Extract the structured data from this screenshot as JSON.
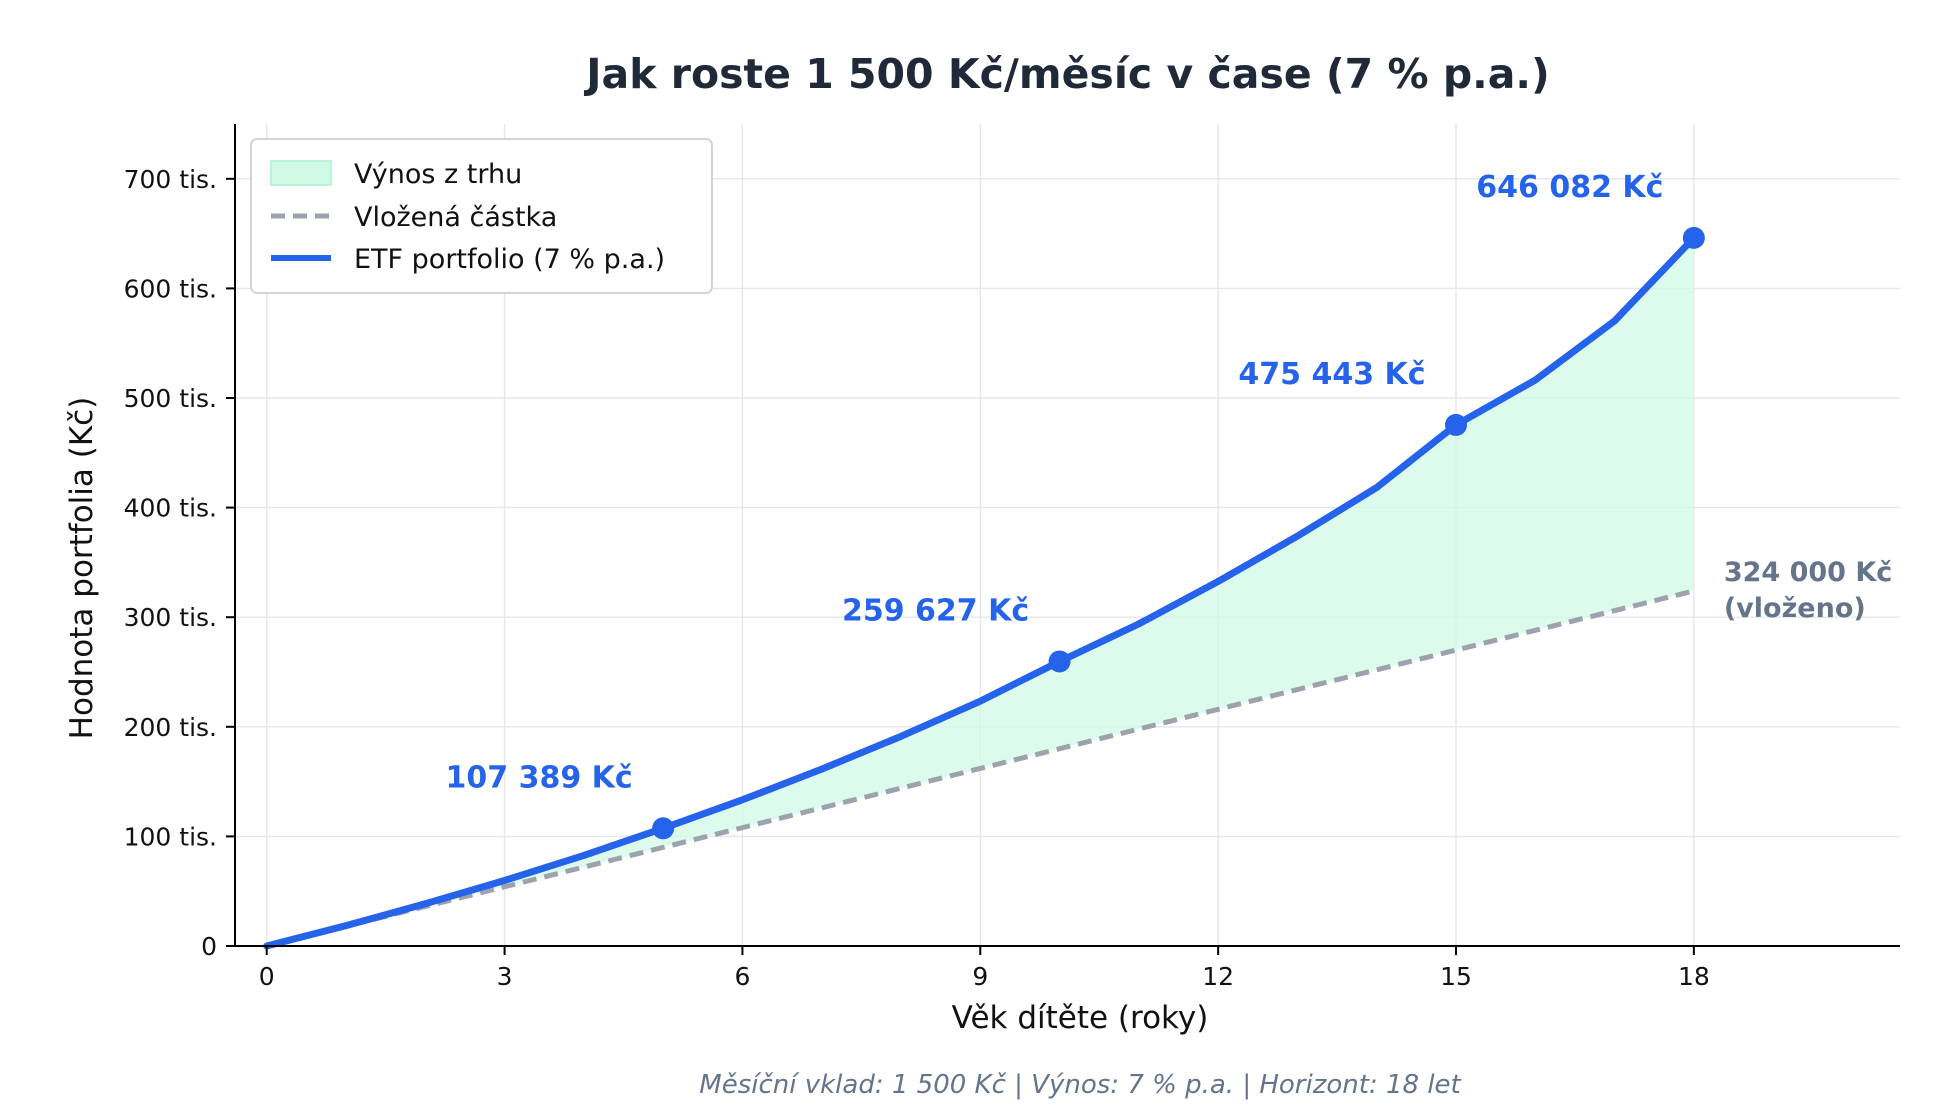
{
  "chart_data": {
    "type": "line",
    "title": "Jak roste 1 500 Kč/měsíc v čase (7 % p.a.)",
    "xlabel": "Věk dítěte (roky)",
    "ylabel": "Hodnota portfolia (Kč)",
    "xlim": [
      -0.4,
      20.6
    ],
    "ylim": [
      0,
      750000
    ],
    "x_ticks": [
      0,
      3,
      6,
      9,
      12,
      15,
      18
    ],
    "y_ticks": [
      {
        "value": 0,
        "label": "0"
      },
      {
        "value": 100000,
        "label": "100 tis."
      },
      {
        "value": 200000,
        "label": "200 tis."
      },
      {
        "value": 300000,
        "label": "300 tis."
      },
      {
        "value": 400000,
        "label": "400 tis."
      },
      {
        "value": 500000,
        "label": "500 tis."
      },
      {
        "value": 600000,
        "label": "600 tis."
      },
      {
        "value": 700000,
        "label": "700 tis."
      }
    ],
    "grid": true,
    "legend_position": "top-left",
    "series": [
      {
        "name": "ETF portfolio (7 % p.a.)",
        "style": "solid",
        "color": "#2563eb",
        "x": [
          0,
          1,
          2,
          3,
          4,
          5,
          6,
          7,
          8,
          9,
          10,
          11,
          12,
          13,
          14,
          15,
          16,
          17,
          18
        ],
        "values": [
          0,
          18600,
          38500,
          59800,
          82600,
          107389,
          133400,
          161400,
          191300,
          223400,
          259627,
          293900,
          332600,
          374000,
          418300,
          475443,
          516400,
          570300,
          646082
        ]
      },
      {
        "name": "Vložená částka",
        "style": "dashed",
        "color": "#9ca3af",
        "x": [
          0,
          18
        ],
        "values": [
          0,
          324000
        ]
      }
    ],
    "fill": {
      "name": "Výnos z trhu",
      "color": "#d1fae5",
      "between": [
        "Vložená částka",
        "ETF portfolio (7 % p.a.)"
      ]
    },
    "markers": [
      {
        "x": 5,
        "y": 107389,
        "label": "107 389 Kč"
      },
      {
        "x": 10,
        "y": 259627,
        "label": "259 627 Kč"
      },
      {
        "x": 15,
        "y": 475443,
        "label": "475 443 Kč"
      },
      {
        "x": 18,
        "y": 646082,
        "label": "646 082 Kč"
      }
    ],
    "end_annotation": {
      "x": 18,
      "y": 324000,
      "lines": [
        "324 000 Kč",
        "(vloženo)"
      ]
    },
    "footer": "Měsíční vklad: 1 500 Kč   |   Výnos: 7 % p.a.   |   Horizont: 18 let",
    "colors": {
      "portfolio": "#2563eb",
      "contributions": "#9ca3af",
      "fill": "#d1fae5",
      "fill_stroke": "#a7f3d0",
      "annotation": "#64748b"
    }
  }
}
